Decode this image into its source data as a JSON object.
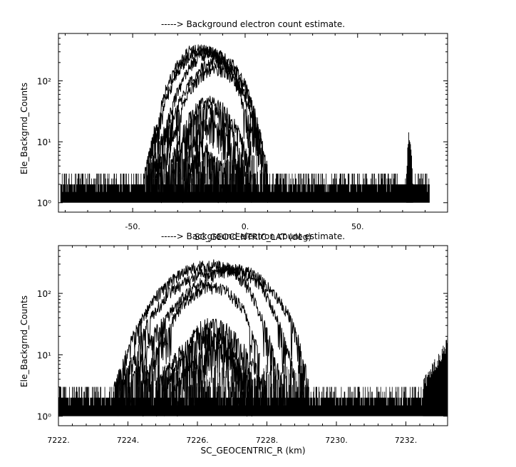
{
  "chart_data": [
    {
      "type": "line",
      "title": "-----> Background electron count estimate.",
      "xlabel": "SC_GEOCENTRIC_LAT (deg)",
      "ylabel": "Ele_Backgrnd_Counts",
      "yscale": "log",
      "xlim": [
        -83,
        90
      ],
      "ylim": [
        0.7,
        600
      ],
      "x_ticks": [
        -50,
        0,
        50
      ],
      "x_tick_labels": [
        "-50.",
        "0.",
        "50."
      ],
      "y_ticks": [
        1,
        10,
        100
      ],
      "y_tick_labels": [
        "10⁰",
        "10¹",
        "10²"
      ],
      "grid": false,
      "noise": {
        "x_range": [
          -82,
          82
        ],
        "min": 1,
        "max": 3
      },
      "spike": {
        "x": 73,
        "peak": 16
      },
      "series": [
        {
          "x": [
            -45,
            -40,
            -35,
            -30,
            -25,
            -20,
            -15,
            -10,
            -5,
            0,
            3
          ],
          "values": [
            3,
            18,
            80,
            190,
            310,
            340,
            300,
            210,
            110,
            35,
            8
          ]
        },
        {
          "x": [
            -44,
            -40,
            -35,
            -30,
            -25,
            -20,
            -15,
            -10,
            -5,
            0,
            4
          ],
          "values": [
            3,
            12,
            55,
            150,
            260,
            320,
            310,
            240,
            140,
            50,
            10
          ]
        },
        {
          "x": [
            -42,
            -35,
            -30,
            -25,
            -20,
            -15,
            -10,
            -5,
            0,
            5,
            8
          ],
          "values": [
            3,
            20,
            70,
            170,
            270,
            300,
            260,
            180,
            90,
            25,
            8
          ]
        },
        {
          "x": [
            -40,
            -35,
            -30,
            -25,
            -20,
            -15,
            -10,
            -5,
            0,
            5,
            10
          ],
          "values": [
            3,
            14,
            40,
            90,
            160,
            210,
            200,
            150,
            80,
            25,
            4
          ]
        },
        {
          "x": [
            -38,
            -35,
            -30,
            -25,
            -20,
            -15,
            -10,
            -5,
            0,
            5,
            9
          ],
          "values": [
            3,
            7,
            25,
            70,
            120,
            160,
            150,
            110,
            60,
            20,
            4
          ]
        },
        {
          "x": [
            -35,
            -30,
            -25,
            -20,
            -15,
            -10,
            -5,
            0,
            3
          ],
          "values": [
            3,
            10,
            25,
            45,
            48,
            38,
            22,
            8,
            3
          ]
        },
        {
          "x": [
            -33,
            -30,
            -25,
            -20,
            -15,
            -10,
            -5,
            -1
          ],
          "values": [
            3,
            6,
            18,
            35,
            38,
            28,
            14,
            4
          ]
        },
        {
          "x": [
            -30,
            -25,
            -20,
            -15,
            -10,
            -5,
            -2
          ],
          "values": [
            3,
            7,
            18,
            22,
            15,
            7,
            3
          ]
        },
        {
          "x": [
            -27,
            -23,
            -20,
            -17,
            -13,
            -8
          ],
          "values": [
            3,
            5,
            9,
            8,
            5,
            3
          ]
        }
      ]
    },
    {
      "type": "line",
      "title": "-----> Background electron count estimate.",
      "xlabel": "SC_GEOCENTRIC_R (km)",
      "ylabel": "Ele_Backgrnd_Counts",
      "yscale": "log",
      "xlim": [
        7222.0,
        7233.2
      ],
      "ylim": [
        0.7,
        600
      ],
      "x_ticks": [
        7222,
        7224,
        7226,
        7228,
        7230,
        7232
      ],
      "x_tick_labels": [
        "7222.",
        "7224.",
        "7226.",
        "7228.",
        "7230.",
        "7232."
      ],
      "y_ticks": [
        1,
        10,
        100
      ],
      "y_tick_labels": [
        "10⁰",
        "10¹",
        "10²"
      ],
      "grid": false,
      "noise": {
        "x_range": [
          7222.0,
          7233.2
        ],
        "min": 1,
        "max": 3
      },
      "edge_rise": {
        "x": [
          7232.5,
          7233.2
        ],
        "values": [
          4,
          20
        ]
      },
      "series": [
        {
          "x": [
            7223.6,
            7224.2,
            7224.8,
            7225.4,
            7226.0,
            7226.5,
            7227.0,
            7227.5,
            7228.0,
            7228.5
          ],
          "values": [
            3,
            25,
            90,
            200,
            280,
            300,
            250,
            120,
            25,
            3
          ]
        },
        {
          "x": [
            7223.8,
            7224.5,
            7225.2,
            7226.0,
            7226.7,
            7227.2,
            7227.8,
            7228.3,
            7228.8
          ],
          "values": [
            3,
            30,
            110,
            200,
            240,
            250,
            150,
            40,
            5
          ]
        },
        {
          "x": [
            7224.0,
            7224.8,
            7225.6,
            7226.3,
            7227.0,
            7227.6,
            7228.2,
            7228.8,
            7229.2
          ],
          "values": [
            3,
            25,
            90,
            190,
            250,
            220,
            110,
            30,
            4
          ]
        },
        {
          "x": [
            7224.4,
            7225.0,
            7225.6,
            7226.2,
            7226.8,
            7227.3,
            7227.8
          ],
          "values": [
            3,
            20,
            70,
            130,
            120,
            60,
            10
          ]
        },
        {
          "x": [
            7224.8,
            7225.5,
            7226.2,
            7226.8,
            7227.4,
            7228.0
          ],
          "values": [
            3,
            12,
            35,
            30,
            12,
            3
          ]
        },
        {
          "x": [
            7225.0,
            7225.6,
            7226.2,
            7226.8,
            7227.5
          ],
          "values": [
            3,
            10,
            25,
            18,
            4
          ]
        },
        {
          "x": [
            7225.3,
            7225.9,
            7226.5,
            7227.1,
            7227.6
          ],
          "values": [
            3,
            8,
            15,
            9,
            3
          ]
        }
      ]
    }
  ]
}
